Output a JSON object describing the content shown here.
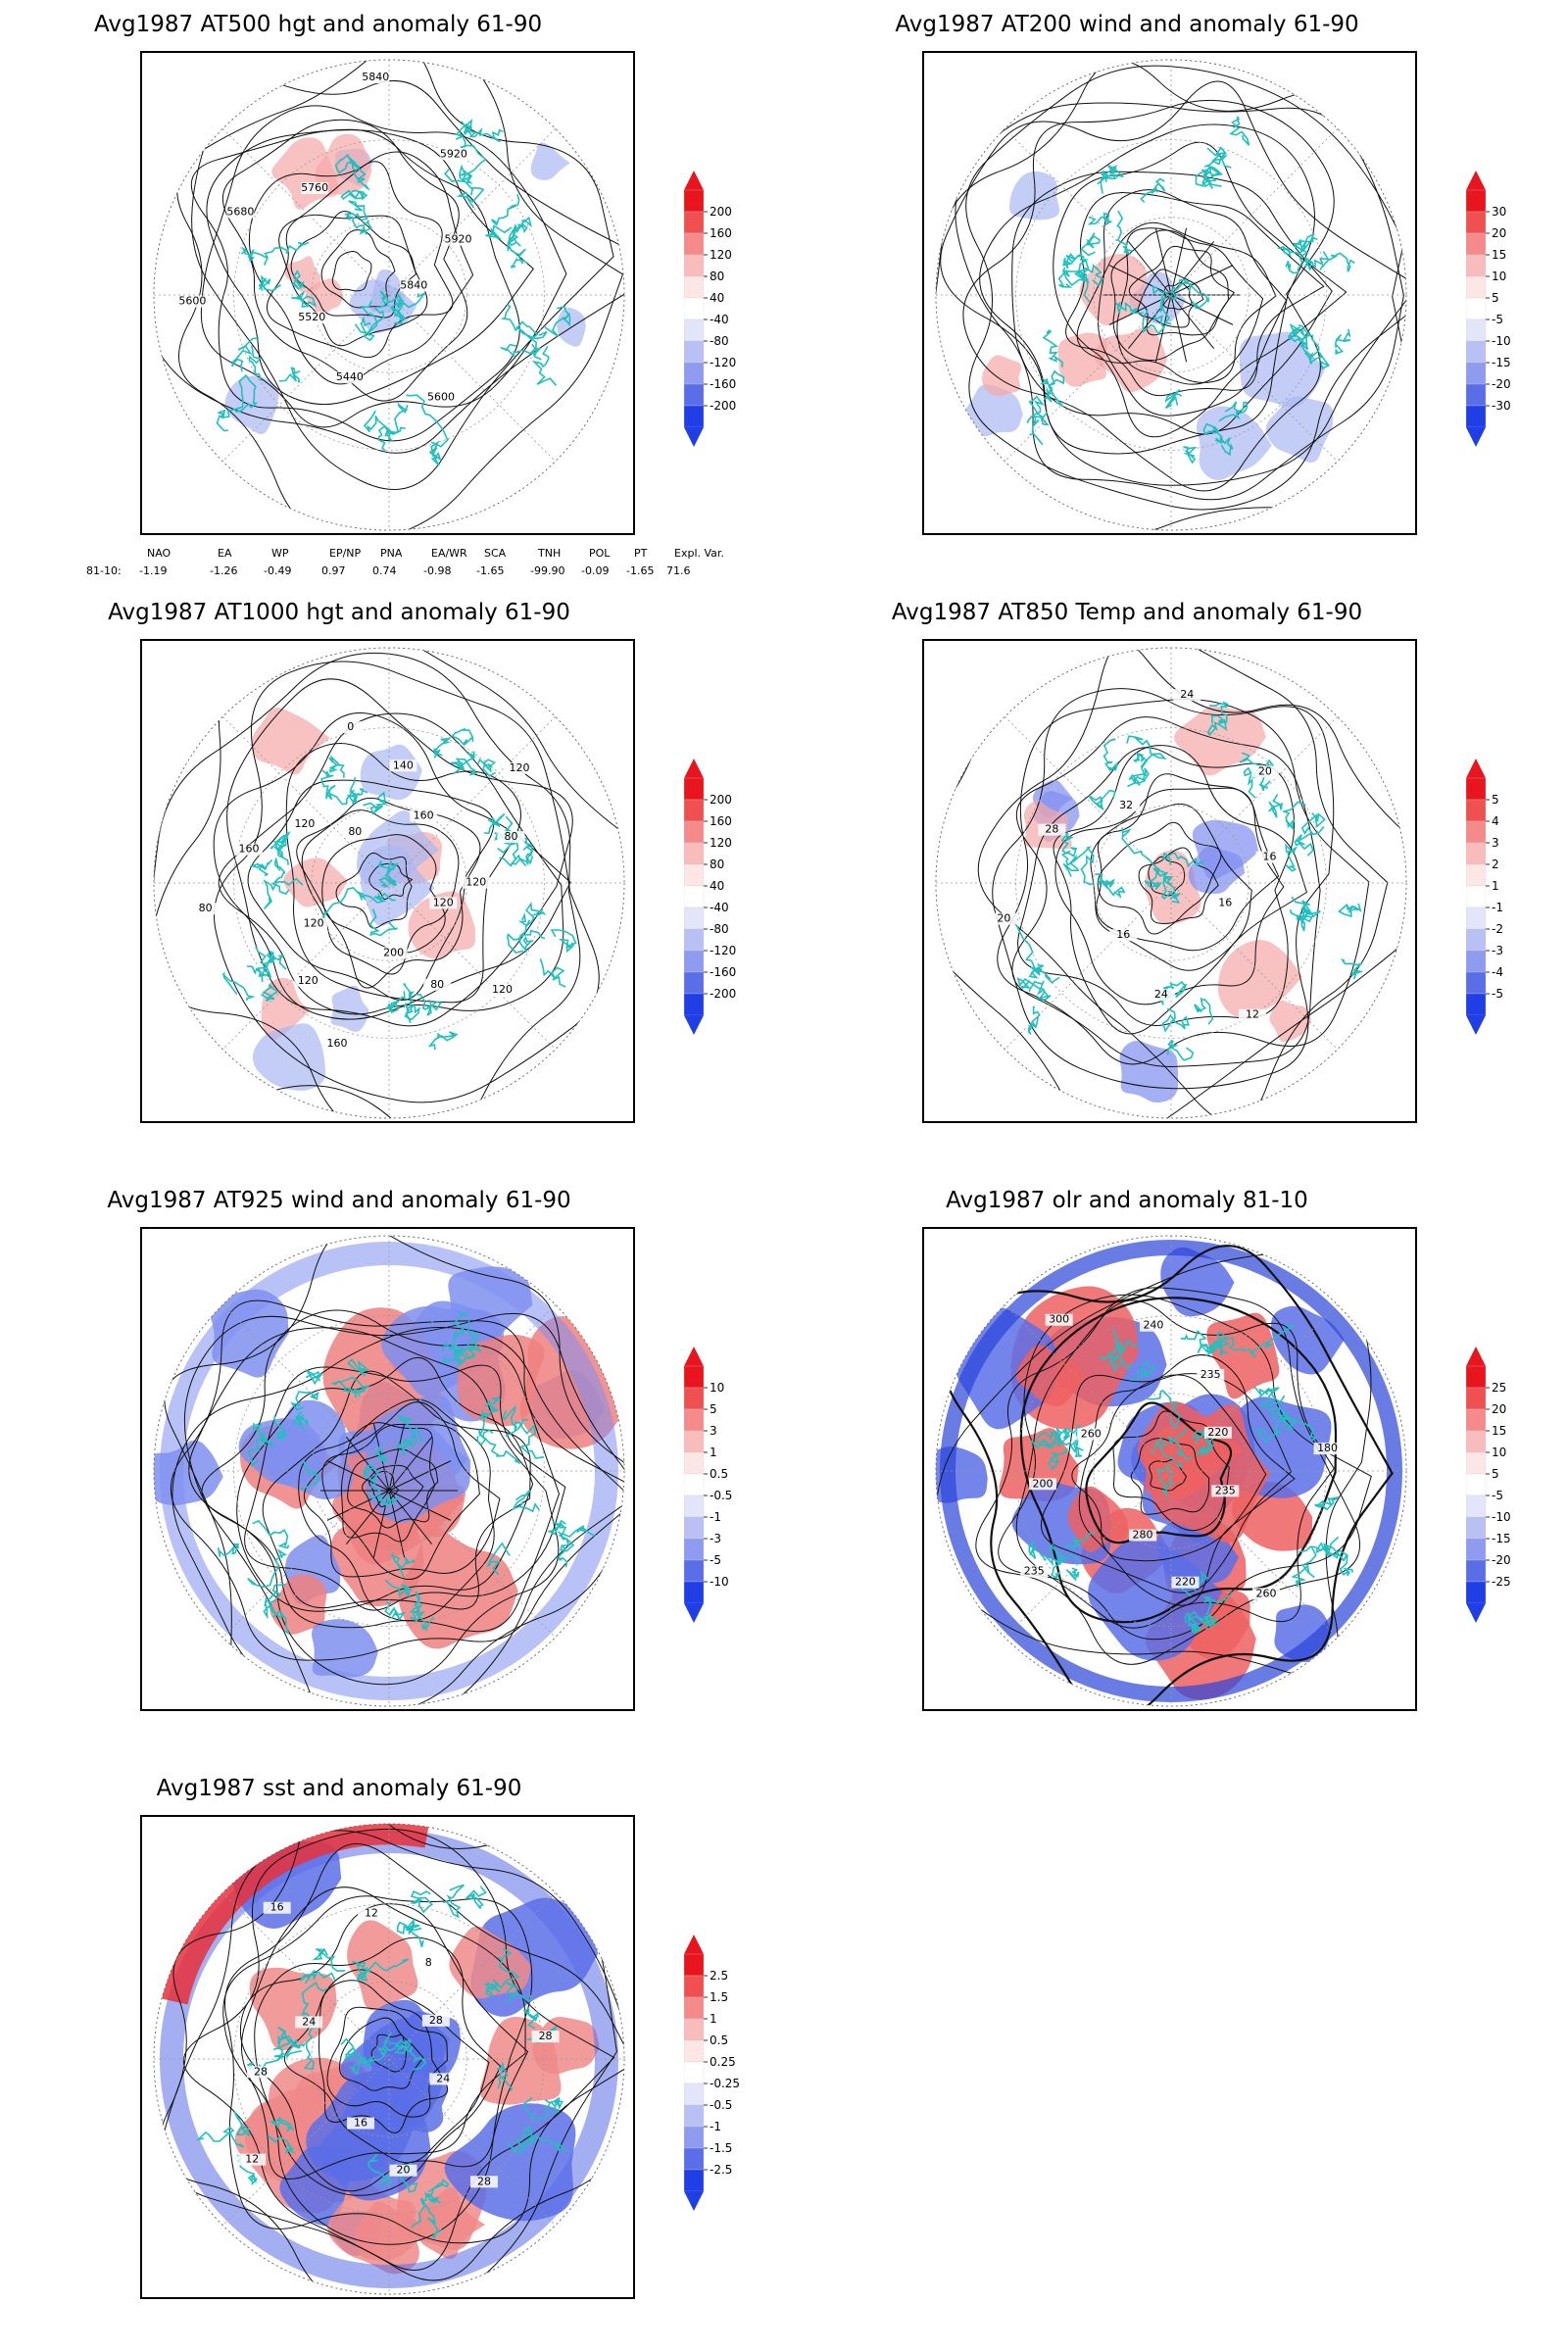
{
  "panels": [
    {
      "title": "Avg1987 AT500 hgt and anomaly 61-90",
      "kind": "contour",
      "colorbar": [
        "200",
        "160",
        "120",
        "80",
        "40",
        "-40",
        "-80",
        "-120",
        "-160",
        "-200"
      ],
      "contour_labels": [
        "5840",
        "5600",
        "5440",
        "5520",
        "5600",
        "5680",
        "5760",
        "5840",
        "5920",
        "5920"
      ],
      "palette": {
        "pos": "#f5a8a8",
        "neg": "#a9b8f2"
      }
    },
    {
      "title": "Avg1987 AT200 wind and anomaly 61-90",
      "kind": "streamline",
      "colorbar": [
        "30",
        "20",
        "15",
        "10",
        "5",
        "-5",
        "-10",
        "-15",
        "-20",
        "-30"
      ],
      "contour_labels": [],
      "palette": {
        "pos": "#f5a8a8",
        "neg": "#a9b8f2"
      }
    },
    {
      "title": "Avg1987 AT1000 hgt and anomaly 61-90",
      "kind": "contour",
      "colorbar": [
        "200",
        "160",
        "120",
        "80",
        "40",
        "-40",
        "-80",
        "-120",
        "-160",
        "-200"
      ],
      "contour_labels": [
        "120",
        "120",
        "80",
        "200",
        "160",
        "120",
        "120",
        "80",
        "160",
        "120",
        "80",
        "0",
        "140",
        "160",
        "120",
        "80",
        "120"
      ],
      "palette": {
        "pos": "#f5a8a8",
        "neg": "#a9b8f2"
      }
    },
    {
      "title": "Avg1987 AT850 Temp and anomaly 61-90",
      "kind": "contour",
      "colorbar": [
        "5",
        "4",
        "3",
        "2",
        "1",
        "-1",
        "-2",
        "-3",
        "-4",
        "-5"
      ],
      "contour_labels": [
        "16",
        "12",
        "24",
        "16",
        "20",
        "28",
        "32",
        "24",
        "20",
        "16"
      ],
      "palette": {
        "pos": "#f5a8a8",
        "neg": "#7f8ff0"
      }
    },
    {
      "title": "Avg1987 AT925 wind and anomaly 61-90",
      "kind": "streamline",
      "colorbar": [
        "10",
        "5",
        "3",
        "1",
        "0.5",
        "-0.5",
        "-1",
        "-3",
        "-5",
        "-10"
      ],
      "contour_labels": [],
      "palette": {
        "pos": "#ee8080",
        "neg": "#7f8ff0"
      }
    },
    {
      "title": "Avg1987 olr and anomaly 81-10",
      "kind": "contour",
      "colorbar": [
        "25",
        "20",
        "15",
        "10",
        "5",
        "-5",
        "-10",
        "-15",
        "-20",
        "-25"
      ],
      "contour_labels": [
        "235",
        "260",
        "220",
        "280",
        "235",
        "200",
        "260",
        "300",
        "240",
        "235",
        "220",
        "180"
      ],
      "palette": {
        "pos": "#ee6060",
        "neg": "#5a6ee8"
      }
    },
    {
      "title": "Avg1987 sst and anomaly 61-90",
      "kind": "contour",
      "colorbar": [
        "2.5",
        "1.5",
        "1",
        "0.5",
        "0.25",
        "-0.25",
        "-0.5",
        "-1",
        "-1.5",
        "-2.5"
      ],
      "contour_labels": [
        "24",
        "28",
        "20",
        "16",
        "12",
        "28",
        "24",
        "16",
        "12",
        "8",
        "28",
        "28"
      ],
      "palette": {
        "pos": "#f08a8a",
        "neg": "#5a6ee8"
      }
    }
  ],
  "teleconnection": {
    "headers": [
      "NAO",
      "EA",
      "WP",
      "EP/NP",
      "PNA",
      "EA/WR",
      "SCA",
      "TNH",
      "POL",
      "PT",
      "Expl. Var."
    ],
    "row_label": "81-10:",
    "values": [
      "-1.19",
      "-1.26",
      "-0.49",
      "0.97",
      "0.74",
      "-0.98",
      "-1.65",
      "-99.90",
      "-0.09",
      "-1.65",
      "71.6"
    ]
  },
  "colors": {
    "coast": "#20c0c0",
    "contour": "#111111",
    "grid": "#999999",
    "cbar_scale": [
      "#e8141e",
      "#f05050",
      "#f48a8a",
      "#f8bcbc",
      "#fde6e6",
      "#ffffff",
      "#e3e6fb",
      "#b9c1f4",
      "#8f9bee",
      "#5a6ee8",
      "#1f3ee6"
    ]
  }
}
